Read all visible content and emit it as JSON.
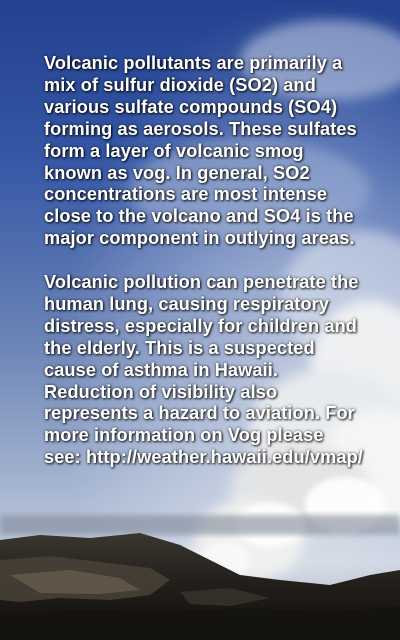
{
  "background": {
    "scene": "volcanic-plume-landscape-photo",
    "sky_top_color": "#2a4a9a",
    "sky_bottom_color": "#b7c6dd",
    "ground_color": "#1c1a16",
    "plume_color": "#f1f1ee"
  },
  "text": {
    "color": "#ffffff",
    "paragraph_1": "Volcanic pollutants are primarily a mix of sulfur dioxide (SO2) and various sulfate compounds (SO4) forming as aerosols. These sulfates form a layer of volcanic smog known as vog. In general, SO2 concentrations are most intense close to the volcano and SO4  is the major component in outlying areas.",
    "paragraph_2": "Volcanic pollution can penetrate the human lung, causing respiratory distress, especially for children and the elderly. This is a suspected cause of asthma in Hawaii. Reduction of visibility also represents a hazard to aviation. For more information on Vog please see:",
    "url": "http://weather.hawaii.edu/vmap/"
  }
}
